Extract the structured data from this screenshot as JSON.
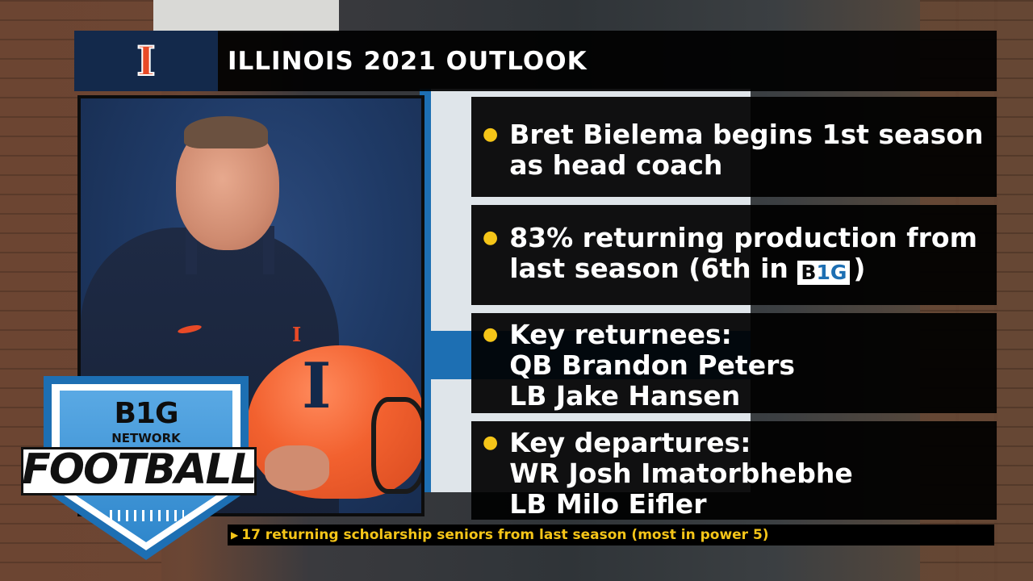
{
  "header": {
    "logo_text": "I",
    "title": "ILLINOIS 2021 OUTLOOK"
  },
  "bullets": [
    {
      "lines": [
        "Bret Bielema begins 1st season",
        "as head coach"
      ]
    },
    {
      "line1": "83% returning production from",
      "line2_prefix": "last season (6th in",
      "logo_b": "B",
      "logo_1g": "1G",
      "line2_suffix": ")"
    },
    {
      "lines": [
        "Key returnees:",
        "QB Brandon Peters",
        "LB Jake Hansen"
      ]
    },
    {
      "lines": [
        "Key departures:",
        "WR Josh Imatorbhebhe",
        "LB Milo Eifler"
      ]
    }
  ],
  "ticker": {
    "text": "17 returning scholarship seniors from last season (most in power 5)"
  },
  "network_logo": {
    "b1g": "B1G",
    "network": "NETWORK",
    "football": "FOOTBALL"
  },
  "colors": {
    "illinois_orange": "#e84a27",
    "illinois_blue": "#13294b",
    "bullet_yellow": "#f5c518",
    "b1g_blue": "#1d6fb3"
  }
}
